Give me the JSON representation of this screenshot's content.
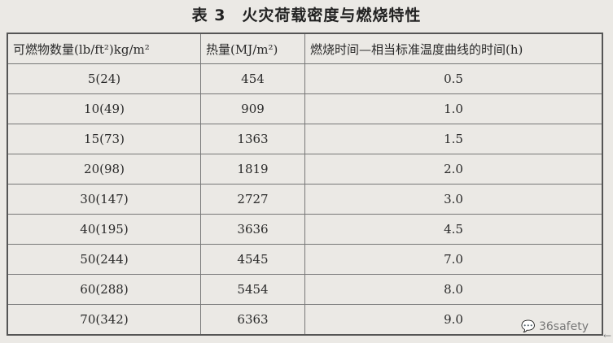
{
  "title": "表 3　火灾荷载密度与燃烧特性",
  "table": {
    "headers": [
      "可燃物数量(lb/ft²)kg/m²",
      "热量(MJ/m²)",
      "燃烧时间—相当标准温度曲线的时间(h)"
    ],
    "rows": [
      [
        "5(24)",
        "454",
        "0.5"
      ],
      [
        "10(49)",
        "909",
        "1.0"
      ],
      [
        "15(73)",
        "1363",
        "1.5"
      ],
      [
        "20(98)",
        "1819",
        "2.0"
      ],
      [
        "30(147)",
        "2727",
        "3.0"
      ],
      [
        "40(195)",
        "3636",
        "4.5"
      ],
      [
        "50(244)",
        "4545",
        "7.0"
      ],
      [
        "60(288)",
        "5454",
        "8.0"
      ],
      [
        "70(342)",
        "6363",
        "9.0"
      ]
    ]
  },
  "watermark": "36safety"
}
